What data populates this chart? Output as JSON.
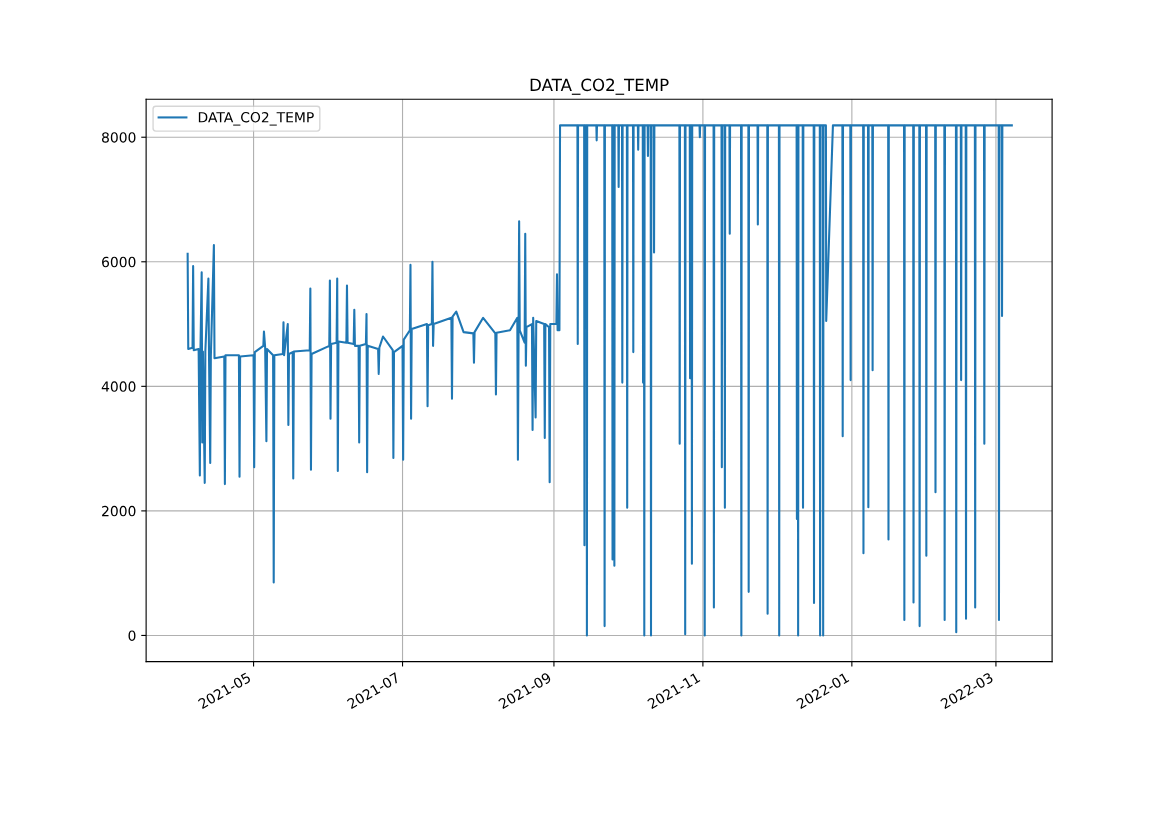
{
  "chart_data": {
    "type": "line",
    "title": "DATA_CO2_TEMP",
    "xlim": [
      "2021-03-18",
      "2022-03-24"
    ],
    "ylim": [
      -420,
      8610
    ],
    "xticks": [
      "2021-05",
      "2021-07",
      "2021-09",
      "2021-11",
      "2022-01",
      "2022-03"
    ],
    "yticks": [
      0,
      2000,
      4000,
      6000,
      8000
    ],
    "grid": true,
    "legend": "top left",
    "series": [
      {
        "name": "DATA_CO2_TEMP",
        "color": "#1f77b4",
        "x": [
          "2021-04-04T00:00",
          "2021-04-04T06:00",
          "2021-04-06T00:00",
          "2021-04-06T06:00",
          "2021-04-06T12:00",
          "2021-04-08T12:00",
          "2021-04-09T00:00",
          "2021-04-09T06:00",
          "2021-04-09T18:00",
          "2021-04-10T00:00",
          "2021-04-10T06:00",
          "2021-04-11T00:00",
          "2021-04-11T06:00",
          "2021-04-12T12:00",
          "2021-04-12T18:00",
          "2021-04-13T06:00",
          "2021-04-13T12:00",
          "2021-04-14T18:00",
          "2021-04-15T00:00",
          "2021-04-19T00:00",
          "2021-04-19T06:00",
          "2021-04-19T12:00",
          "2021-04-25T00:00",
          "2021-04-25T06:00",
          "2021-04-25T12:00",
          "2021-05-01T00:00",
          "2021-05-01T06:00",
          "2021-05-01T12:00",
          "2021-05-05T00:00",
          "2021-05-05T06:00",
          "2021-05-05T18:00",
          "2021-05-06T06:00",
          "2021-05-06T12:00",
          "2021-05-09T00:00",
          "2021-05-09T06:00",
          "2021-05-09T12:00",
          "2021-05-13T00:00",
          "2021-05-13T06:00",
          "2021-05-13T12:00",
          "2021-05-15T00:00",
          "2021-05-15T06:00",
          "2021-05-15T12:00",
          "2021-05-17T00:00",
          "2021-05-17T06:00",
          "2021-05-17T12:00",
          "2021-05-24T00:00",
          "2021-05-24T06:00",
          "2021-05-24T12:00",
          "2021-05-24T18:00",
          "2021-06-01T00:00",
          "2021-06-01T06:00",
          "2021-06-01T12:00",
          "2021-06-01T18:00",
          "2021-06-04T00:00",
          "2021-06-04T06:00",
          "2021-06-04T12:00",
          "2021-06-04T18:00",
          "2021-06-08T00:00",
          "2021-06-08T06:00",
          "2021-06-08T12:00",
          "2021-06-11T00:00",
          "2021-06-11T06:00",
          "2021-06-11T12:00",
          "2021-06-13T00:00",
          "2021-06-13T06:00",
          "2021-06-13T12:00",
          "2021-06-16T00:00",
          "2021-06-16T06:00",
          "2021-06-16T12:00",
          "2021-06-16T18:00",
          "2021-06-21T00:00",
          "2021-06-21T06:00",
          "2021-06-21T12:00",
          "2021-06-23T00:00",
          "2021-06-27T00:00",
          "2021-06-27T06:00",
          "2021-06-27T12:00",
          "2021-07-01T00:00",
          "2021-07-01T06:00",
          "2021-07-01T12:00",
          "2021-07-04T00:00",
          "2021-07-04T06:00",
          "2021-07-04T12:00",
          "2021-07-04T18:00",
          "2021-07-11T00:00",
          "2021-07-11T06:00",
          "2021-07-11T12:00",
          "2021-07-13T00:00",
          "2021-07-13T06:00",
          "2021-07-13T12:00",
          "2021-07-13T18:00",
          "2021-07-21T00:00",
          "2021-07-21T06:00",
          "2021-07-21T12:00",
          "2021-07-23T00:00",
          "2021-07-26T00:00",
          "2021-07-30T00:00",
          "2021-07-30T06:00",
          "2021-07-30T12:00",
          "2021-08-03T00:00",
          "2021-08-08T00:00",
          "2021-08-08T06:00",
          "2021-08-08T12:00",
          "2021-08-14T00:00",
          "2021-08-17T00:00",
          "2021-08-17T06:00",
          "2021-08-17T18:00",
          "2021-08-18T00:00",
          "2021-08-20T00:00",
          "2021-08-20T06:00",
          "2021-08-20T12:00",
          "2021-08-20T18:00",
          "2021-08-23T00:00",
          "2021-08-23T06:00",
          "2021-08-23T12:00",
          "2021-08-24T12:00",
          "2021-08-24T18:00",
          "2021-08-28T00:00",
          "2021-08-28T06:00",
          "2021-08-28T12:00",
          "2021-08-30T00:00",
          "2021-08-30T06:00",
          "2021-08-30T12:00",
          "2021-09-02T00:00",
          "2021-09-02T06:00",
          "2021-09-02T12:00",
          "2021-09-03T06:00",
          "2021-09-03T12:00",
          "2021-09-10T15:00",
          "2021-09-10T18:00",
          "2021-09-10T21:00",
          "2021-09-13T09:00",
          "2021-09-13T12:00",
          "2021-09-13T15:00",
          "2021-09-14T09:00",
          "2021-09-14T12:00",
          "2021-09-14T15:00",
          "2021-09-18T09:00",
          "2021-09-18T12:00",
          "2021-09-18T15:00",
          "2021-09-21T15:00",
          "2021-09-21T18:00",
          "2021-09-21T21:00",
          "2021-09-24T21:00",
          "2021-09-25T00:00",
          "2021-09-25T03:00",
          "2021-09-25T15:00",
          "2021-09-25T18:00",
          "2021-09-25T21:00",
          "2021-09-27T09:00",
          "2021-09-27T12:00",
          "2021-09-27T15:00",
          "2021-09-28T21:00",
          "2021-09-29T00:00",
          "2021-09-29T03:00",
          "2021-09-30T21:00",
          "2021-10-01T00:00",
          "2021-10-01T03:00",
          "2021-10-03T09:00",
          "2021-10-03T12:00",
          "2021-10-03T15:00",
          "2021-10-05T09:00",
          "2021-10-05T12:00",
          "2021-10-05T15:00",
          "2021-10-07T09:00",
          "2021-10-07T12:00",
          "2021-10-07T15:00",
          "2021-10-07T21:00",
          "2021-10-08T00:00",
          "2021-10-08T03:00",
          "2021-10-09T09:00",
          "2021-10-09T12:00",
          "2021-10-09T15:00",
          "2021-10-10T15:00",
          "2021-10-10T18:00",
          "2021-10-10T21:00",
          "2021-10-11T21:00",
          "2021-10-12T00:00",
          "2021-10-12T03:00",
          "2021-10-22T09:00",
          "2021-10-22T12:00",
          "2021-10-22T15:00",
          "2021-10-24T15:00",
          "2021-10-24T18:00",
          "2021-10-24T21:00",
          "2021-10-26T15:00",
          "2021-10-26T18:00",
          "2021-10-26T21:00",
          "2021-10-27T09:00",
          "2021-10-27T12:00",
          "2021-10-27T15:00",
          "2021-10-30T15:00",
          "2021-10-30T18:00",
          "2021-10-30T21:00",
          "2021-11-01T15:00",
          "2021-11-01T18:00",
          "2021-11-01T21:00",
          "2021-11-05T09:00",
          "2021-11-05T12:00",
          "2021-11-05T15:00",
          "2021-11-08T15:00",
          "2021-11-08T18:00",
          "2021-11-08T21:00",
          "2021-11-09T21:00",
          "2021-11-10T00:00",
          "2021-11-10T03:00",
          "2021-11-11T21:00",
          "2021-11-12T00:00",
          "2021-11-12T03:00",
          "2021-11-16T15:00",
          "2021-11-16T18:00",
          "2021-11-16T21:00",
          "2021-11-19T15:00",
          "2021-11-19T18:00",
          "2021-11-19T21:00",
          "2021-11-23T09:00",
          "2021-11-23T12:00",
          "2021-11-23T15:00",
          "2021-11-27T09:00",
          "2021-11-27T12:00",
          "2021-11-27T15:00",
          "2021-12-02T03:00",
          "2021-12-02T06:00",
          "2021-12-02T09:00",
          "2021-12-09T09:00",
          "2021-12-09T12:00",
          "2021-12-09T15:00",
          "2021-12-09T21:00",
          "2021-12-10T00:00",
          "2021-12-10T03:00",
          "2021-12-11T21:00",
          "2021-12-12T00:00",
          "2021-12-12T03:00",
          "2021-12-16T09:00",
          "2021-12-16T12:00",
          "2021-12-16T15:00",
          "2021-12-18T21:00",
          "2021-12-19T00:00",
          "2021-12-19T03:00",
          "2021-12-20T03:00",
          "2021-12-20T06:00",
          "2021-12-20T09:00",
          "2021-12-21T09:00",
          "2021-12-21T12:00",
          "2021-12-24T06:00",
          "2021-12-28T03:00",
          "2021-12-28T06:00",
          "2021-12-28T09:00",
          "2021-12-31T09:00",
          "2021-12-31T12:00",
          "2021-12-31T15:00",
          "2022-01-05T15:00",
          "2022-01-05T18:00",
          "2022-01-05T21:00",
          "2022-01-07T15:00",
          "2022-01-07T18:00",
          "2022-01-07T21:00",
          "2022-01-09T09:00",
          "2022-01-09T12:00",
          "2022-01-09T15:00",
          "2022-01-15T21:00",
          "2022-01-16T00:00",
          "2022-01-16T03:00",
          "2022-01-22T09:00",
          "2022-01-22T12:00",
          "2022-01-22T15:00",
          "2022-01-26T03:00",
          "2022-01-26T06:00",
          "2022-01-26T09:00",
          "2022-01-28T15:00",
          "2022-01-28T18:00",
          "2022-01-28T21:00",
          "2022-01-31T09:00",
          "2022-01-31T12:00",
          "2022-01-31T15:00",
          "2022-02-04T03:00",
          "2022-02-04T06:00",
          "2022-02-04T09:00",
          "2022-02-07T21:00",
          "2022-02-08T00:00",
          "2022-02-08T03:00",
          "2022-02-12T15:00",
          "2022-02-12T18:00",
          "2022-02-12T21:00",
          "2022-02-14T15:00",
          "2022-02-14T18:00",
          "2022-02-14T21:00",
          "2022-02-16T15:00",
          "2022-02-16T18:00",
          "2022-02-16T21:00",
          "2022-02-20T09:00",
          "2022-02-20T12:00",
          "2022-02-20T15:00",
          "2022-02-24T03:00",
          "2022-02-24T06:00",
          "2022-02-24T09:00",
          "2022-03-02T03:00",
          "2022-03-02T06:00",
          "2022-03-02T09:00",
          "2022-03-03T09:00",
          "2022-03-03T12:00",
          "2022-03-03T15:00",
          "2022-03-07T12:00"
        ],
        "values": [
          6130,
          4600,
          4620,
          5930,
          4580,
          4600,
          2570,
          4580,
          5830,
          3100,
          4560,
          2450,
          4560,
          5730,
          4500,
          2770,
          4480,
          6270,
          4450,
          4480,
          2430,
          4500,
          4500,
          2550,
          4480,
          4500,
          2700,
          4550,
          4650,
          4880,
          4620,
          3120,
          4600,
          4500,
          850,
          4500,
          4520,
          5030,
          4500,
          5000,
          3380,
          4520,
          4550,
          2520,
          4560,
          4580,
          5570,
          2660,
          4520,
          4650,
          5700,
          3480,
          4680,
          4700,
          5730,
          2640,
          4720,
          4700,
          5620,
          4700,
          4680,
          5230,
          4650,
          4650,
          3100,
          4650,
          4680,
          5160,
          2620,
          4650,
          4600,
          4200,
          4620,
          4800,
          4580,
          2850,
          4550,
          4650,
          2820,
          4750,
          4900,
          5950,
          3480,
          4920,
          5000,
          3680,
          4980,
          5000,
          6000,
          4650,
          5000,
          5100,
          3800,
          5120,
          5200,
          4870,
          4850,
          4380,
          4870,
          5100,
          4850,
          3870,
          4860,
          4900,
          5100,
          2820,
          6650,
          4900,
          4700,
          6450,
          4330,
          4950,
          5000,
          3300,
          5100,
          3500,
          5050,
          5000,
          3170,
          5000,
          4950,
          2460,
          5000,
          5000,
          5800,
          4900,
          4900,
          8190,
          8190,
          4680,
          8190,
          8190,
          1450,
          8190,
          8190,
          0,
          8190,
          8190,
          7950,
          8190,
          8190,
          150,
          8190,
          8190,
          1220,
          8190,
          8190,
          1120,
          8190,
          8190,
          7200,
          8190,
          8190,
          4060,
          8190,
          8190,
          2050,
          8190,
          8190,
          4550,
          8190,
          8190,
          7800,
          8190,
          8190,
          4060,
          8190,
          8190,
          0,
          8190,
          8190,
          7700,
          8190,
          8190,
          0,
          8190,
          8190,
          6150,
          8190,
          8190,
          3080,
          8190,
          8190,
          20,
          8190,
          8190,
          4130,
          8190,
          8190,
          1150,
          8190,
          8190,
          8000,
          8190,
          8190,
          0,
          8190,
          8190,
          450,
          8190,
          8190,
          2700,
          8190,
          8190,
          2050,
          8190,
          8190,
          6450,
          8190,
          8190,
          0,
          8190,
          8190,
          700,
          8190,
          8190,
          6600,
          8190,
          8190,
          350,
          8190,
          8190,
          0,
          8190,
          8190,
          1870,
          8190,
          8190,
          0,
          8190,
          8190,
          2050,
          8190,
          8190,
          520,
          8190,
          8190,
          0,
          8190,
          8190,
          0,
          8190,
          8190,
          5050,
          8190,
          8190,
          3200,
          8190,
          8190,
          4100,
          8190,
          8190,
          1320,
          8190,
          8190,
          2060,
          8190,
          8190,
          4260,
          8190,
          8190,
          1540,
          8190,
          8190,
          250,
          8190,
          8190,
          530,
          8190,
          8190,
          150,
          8190,
          8190,
          1280,
          8190,
          8190,
          2300,
          8190,
          8190,
          250,
          8190,
          8190,
          50,
          8190,
          8190,
          4100,
          8190,
          8190,
          270,
          8190,
          8190,
          450,
          8190,
          8190,
          3080,
          8190,
          8190,
          250,
          8190,
          8190,
          5130,
          8190,
          8190
        ]
      }
    ]
  }
}
